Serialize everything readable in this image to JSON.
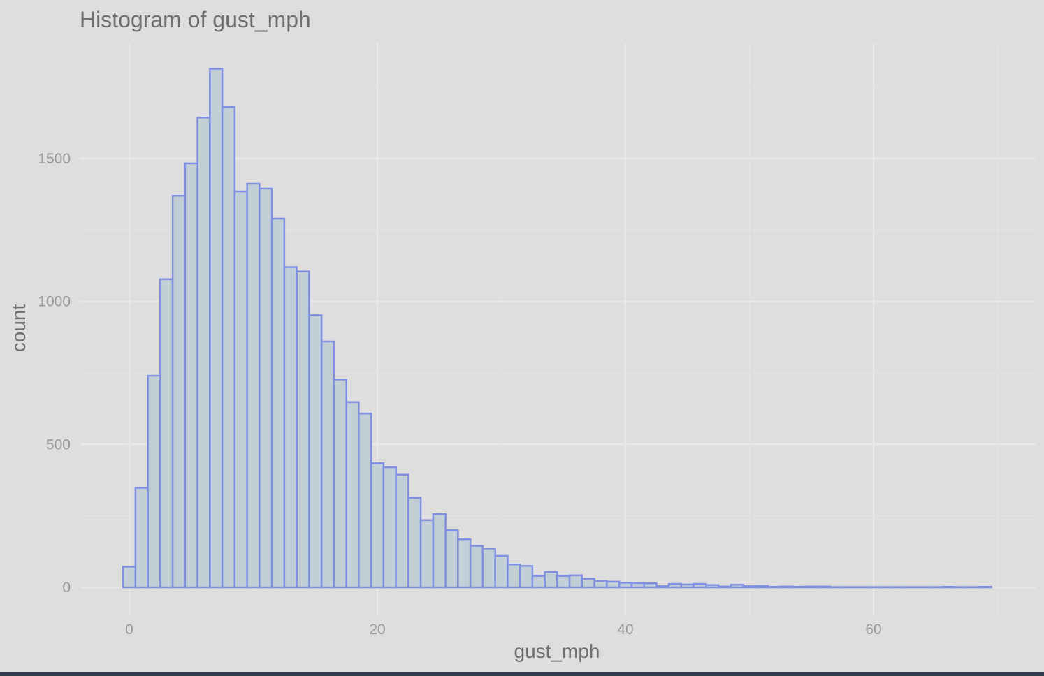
{
  "chart_data": {
    "type": "bar",
    "title": "Histogram of gust_mph",
    "xlabel": "gust_mph",
    "ylabel": "count",
    "xlim": [
      -2,
      70
    ],
    "ylim": [
      -90,
      1900
    ],
    "x_ticks": [
      0,
      20,
      40,
      60
    ],
    "y_ticks": [
      0,
      500,
      1000,
      1500
    ],
    "grid": true,
    "bin_width": 1,
    "fill_color": "#c2cfd6",
    "outline_color": "#7f8fe1",
    "bins_start": [
      -0.5,
      0.5,
      1.5,
      2.5,
      3.5,
      4.5,
      5.5,
      6.5,
      7.5,
      8.5,
      9.5,
      10.5,
      11.5,
      12.5,
      13.5,
      14.5,
      15.5,
      16.5,
      17.5,
      18.5,
      19.5,
      20.5,
      21.5,
      22.5,
      23.5,
      24.5,
      25.5,
      26.5,
      27.5,
      28.5,
      29.5,
      30.5,
      31.5,
      32.5,
      33.5,
      34.5,
      35.5,
      36.5,
      37.5,
      38.5,
      39.5,
      40.5,
      41.5,
      42.5,
      43.5,
      44.5,
      45.5,
      46.5,
      47.5,
      48.5,
      49.5,
      50.5,
      51.5,
      52.5,
      53.5,
      54.5,
      55.5,
      56.5,
      57.5,
      58.5,
      59.5,
      60.5,
      61.5,
      62.5,
      63.5,
      64.5,
      65.5,
      66.5,
      67.5,
      68.5
    ],
    "values": [
      72,
      348,
      740,
      1078,
      1370,
      1483,
      1643,
      1814,
      1680,
      1385,
      1412,
      1395,
      1290,
      1120,
      1105,
      952,
      860,
      727,
      648,
      608,
      434,
      420,
      394,
      313,
      235,
      256,
      200,
      168,
      145,
      136,
      110,
      80,
      75,
      40,
      54,
      40,
      42,
      30,
      22,
      20,
      16,
      15,
      14,
      4,
      12,
      10,
      12,
      8,
      3,
      9,
      4,
      5,
      2,
      3,
      2,
      3,
      3,
      1,
      1,
      1,
      1,
      1,
      1,
      1,
      1,
      1,
      2,
      1,
      1,
      2
    ]
  }
}
